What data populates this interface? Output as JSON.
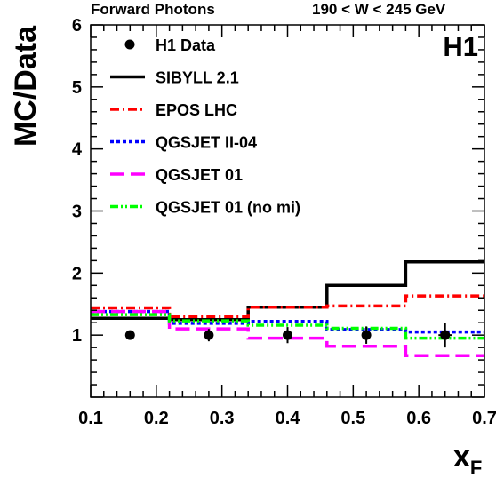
{
  "header": {
    "left": "Forward Photons",
    "right": "190 < W < 245 GeV",
    "experiment": "H1"
  },
  "chart_data": {
    "type": "line",
    "title": "",
    "xlabel": "x",
    "xlabel_sub": "F",
    "ylabel": "MC/Data",
    "xlim": [
      0.1,
      0.7
    ],
    "ylim": [
      0,
      6
    ],
    "x_ticks": [
      "0.1",
      "0.2",
      "0.3",
      "0.4",
      "0.5",
      "0.6",
      "0.7"
    ],
    "y_ticks": [
      "1",
      "2",
      "3",
      "4",
      "5",
      "6"
    ],
    "legend_position": "top-left",
    "bin_edges": [
      0.1,
      0.22,
      0.34,
      0.46,
      0.58,
      0.7
    ],
    "data": {
      "name": "H1 Data",
      "x": [
        0.16,
        0.28,
        0.4,
        0.52,
        0.64
      ],
      "y": [
        1.0,
        1.0,
        1.0,
        1.0,
        1.0
      ],
      "yerr": [
        0.03,
        0.1,
        0.13,
        0.14,
        0.2
      ],
      "xerr_half": [
        0,
        0,
        0,
        0,
        0.01
      ],
      "color": "#000000"
    },
    "series": [
      {
        "name": "SIBYLL 2.1",
        "values": [
          1.27,
          1.25,
          1.45,
          1.8,
          2.18
        ],
        "color": "#000000",
        "dash": "solid"
      },
      {
        "name": "EPOS LHC",
        "values": [
          1.44,
          1.3,
          1.45,
          1.47,
          1.63
        ],
        "color": "#ff0000",
        "dash": "dashdot"
      },
      {
        "name": "QGSJET II-04",
        "values": [
          1.38,
          1.19,
          1.22,
          1.09,
          1.05
        ],
        "color": "#0000ff",
        "dash": "dot"
      },
      {
        "name": "QGSJET 01",
        "values": [
          1.38,
          1.1,
          0.95,
          0.82,
          0.67
        ],
        "color": "#ff00ff",
        "dash": "dash"
      },
      {
        "name": "QGSJET 01 (no mi)",
        "values": [
          1.33,
          1.23,
          1.16,
          1.11,
          0.95
        ],
        "color": "#00ff00",
        "dash": "dashdotdot"
      }
    ]
  }
}
